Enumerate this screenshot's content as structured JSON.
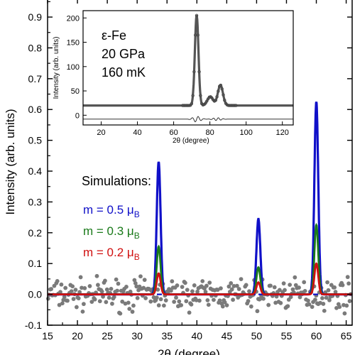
{
  "chart_data": {
    "type": "scatter",
    "xlabel": "2θ (degree)",
    "ylabel": "Intensity (arb. units)",
    "xlim": [
      15,
      66
    ],
    "ylim": [
      -0.1,
      0.96
    ],
    "x_ticks": [
      15,
      20,
      25,
      30,
      35,
      40,
      45,
      50,
      55,
      60,
      65
    ],
    "y_ticks": [
      -0.1,
      0.0,
      0.1,
      0.2,
      0.3,
      0.4,
      0.5,
      0.6,
      0.7,
      0.8,
      0.9
    ],
    "annotation_title": "Simulations:",
    "series": [
      {
        "name_main": "m = 0.5 ",
        "name_unit": "μ",
        "name_sub": "B",
        "color": "#1010c8",
        "peaks": [
          [
            33.6,
            0.43
          ],
          [
            50.3,
            0.245
          ],
          [
            60.0,
            0.625
          ]
        ]
      },
      {
        "name_main": "m = 0.3 ",
        "name_unit": "μ",
        "name_sub": "B",
        "color": "#1a7a1a",
        "peaks": [
          [
            33.6,
            0.155
          ],
          [
            50.3,
            0.088
          ],
          [
            60.0,
            0.225
          ]
        ]
      },
      {
        "name_main": "m = 0.2 ",
        "name_unit": "μ",
        "name_sub": "B",
        "color": "#d01010",
        "peaks": [
          [
            33.6,
            0.068
          ],
          [
            50.3,
            0.039
          ],
          [
            60.0,
            0.1
          ]
        ]
      }
    ],
    "peak_width": 0.32,
    "data_points": {
      "color": "#7a7a7a",
      "x_start": 15.1,
      "x_step": 0.17,
      "count": 300,
      "noise_amplitude": 0.04
    },
    "baseline_dashed": {
      "color": "#1010c8"
    },
    "inset": {
      "annotation_lines": [
        "ε-Fe",
        "20 GPa",
        "160 mK"
      ],
      "xlabel": "2θ (degree)",
      "ylabel": "Intensity (arb. units)",
      "xlim": [
        10,
        126
      ],
      "ylim": [
        -20,
        215
      ],
      "x_ticks": [
        20,
        40,
        60,
        80,
        100,
        120
      ],
      "y_ticks": [
        0,
        50,
        100,
        150,
        200
      ],
      "background_level": 20,
      "peaks": [
        [
          72.7,
          185,
          1.0
        ],
        [
          80.2,
          18,
          1.6
        ],
        [
          85.8,
          42,
          1.4
        ]
      ],
      "difference_offset": -8,
      "color": "#555555"
    }
  }
}
